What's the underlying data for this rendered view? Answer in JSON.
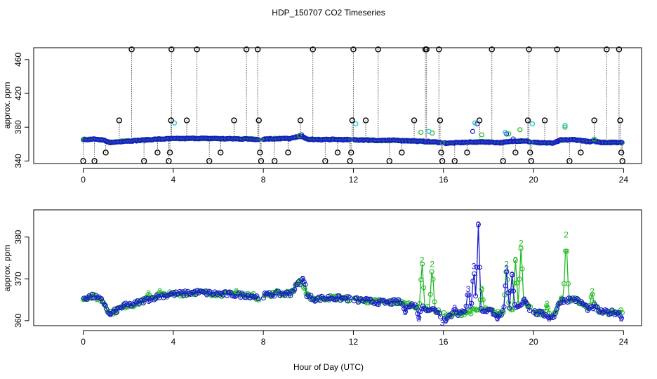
{
  "chart_data": {
    "title": "HDP_150707  CO2 Timeseries",
    "xlabel": "Hour of Day (UTC)",
    "xlim": [
      -2.2,
      24.8
    ],
    "xticks": [
      0,
      4,
      8,
      12,
      16,
      20,
      24
    ],
    "colors": {
      "flag": "#000000",
      "flag_line": "#000000",
      "cyan": "#2ec8d0",
      "green": "#22bb22",
      "blue": "#1a1acc"
    },
    "panels": [
      {
        "type": "scatter",
        "ylabel": "approx. ppm",
        "ylim": [
          337,
          474
        ],
        "yticks": [
          340,
          380,
          420,
          460
        ],
        "flag_values": [
          [
            0.0,
            340
          ],
          [
            0.5,
            340
          ],
          [
            1.0,
            350
          ],
          [
            1.6,
            388
          ],
          [
            2.15,
            472
          ],
          [
            2.7,
            340
          ],
          [
            3.3,
            350
          ],
          [
            3.8,
            340
          ],
          [
            3.85,
            350
          ],
          [
            3.9,
            388
          ],
          [
            3.92,
            472
          ],
          [
            4.6,
            388
          ],
          [
            5.05,
            472
          ],
          [
            5.6,
            340
          ],
          [
            6.1,
            350
          ],
          [
            6.7,
            388
          ],
          [
            7.25,
            472
          ],
          [
            7.75,
            472
          ],
          [
            7.8,
            388
          ],
          [
            7.85,
            350
          ],
          [
            7.9,
            340
          ],
          [
            8.5,
            340
          ],
          [
            9.1,
            350
          ],
          [
            9.65,
            388
          ],
          [
            10.2,
            472
          ],
          [
            10.75,
            340
          ],
          [
            11.3,
            350
          ],
          [
            11.85,
            340
          ],
          [
            11.9,
            350
          ],
          [
            11.95,
            388
          ],
          [
            12.0,
            472
          ],
          [
            12.55,
            388
          ],
          [
            13.1,
            472
          ],
          [
            13.6,
            340
          ],
          [
            14.15,
            350
          ],
          [
            14.7,
            388
          ],
          [
            15.2,
            472
          ],
          [
            15.25,
            472
          ],
          [
            15.8,
            472
          ],
          [
            15.85,
            388
          ],
          [
            15.9,
            350
          ],
          [
            15.95,
            340
          ],
          [
            16.5,
            340
          ],
          [
            17.05,
            350
          ],
          [
            17.6,
            388
          ],
          [
            18.15,
            472
          ],
          [
            18.65,
            340
          ],
          [
            19.2,
            350
          ],
          [
            19.75,
            388
          ],
          [
            19.8,
            472
          ],
          [
            19.85,
            350
          ],
          [
            19.9,
            340
          ],
          [
            20.5,
            388
          ],
          [
            21.05,
            472
          ],
          [
            21.6,
            340
          ],
          [
            22.1,
            350
          ],
          [
            22.7,
            388
          ],
          [
            23.25,
            472
          ],
          [
            23.8,
            472
          ],
          [
            23.85,
            388
          ],
          [
            23.9,
            350
          ],
          [
            23.95,
            340
          ]
        ],
        "cyan_values": [
          [
            4.05,
            385
          ],
          [
            12.1,
            384
          ],
          [
            15.35,
            375
          ],
          [
            17.4,
            385
          ],
          [
            19.95,
            384
          ],
          [
            21.4,
            382
          ],
          [
            18.75,
            374
          ]
        ],
        "green_peaks": [
          [
            15.0,
            374
          ],
          [
            15.5,
            373
          ],
          [
            17.7,
            371
          ],
          [
            19.4,
            377
          ],
          [
            21.4,
            380
          ],
          [
            22.7,
            366
          ],
          [
            18.9,
            372
          ],
          [
            9.6,
            370
          ]
        ],
        "blue_peaks": [
          [
            17.5,
            384
          ],
          [
            17.3,
            375
          ],
          [
            18.8,
            372
          ],
          [
            9.7,
            371
          ],
          [
            19.1,
            366
          ]
        ]
      },
      {
        "type": "line",
        "ylabel": "approx. ppm",
        "ylim": [
          358.8,
          386.5
        ],
        "yticks": [
          360,
          370,
          380
        ],
        "series": [
          {
            "name": "2",
            "color": "#22bb22"
          },
          {
            "name": "3",
            "color": "#1a1acc"
          }
        ],
        "base_curve": [
          [
            0.0,
            365.5
          ],
          [
            0.5,
            365.8
          ],
          [
            0.9,
            364.5
          ],
          [
            1.15,
            362.0
          ],
          [
            1.4,
            362.2
          ],
          [
            1.8,
            363.5
          ],
          [
            2.3,
            364.0
          ],
          [
            2.8,
            365.0
          ],
          [
            3.3,
            365.8
          ],
          [
            3.8,
            366.3
          ],
          [
            4.5,
            366.5
          ],
          [
            5.0,
            366.8
          ],
          [
            5.5,
            366.6
          ],
          [
            6.5,
            366.3
          ],
          [
            7.5,
            366.0
          ],
          [
            7.8,
            365.5
          ],
          [
            8.0,
            366.0
          ],
          [
            8.5,
            366.4
          ],
          [
            9.2,
            366.5
          ],
          [
            9.5,
            368.5
          ],
          [
            9.7,
            369.5
          ],
          [
            9.9,
            366.0
          ],
          [
            10.3,
            365.2
          ],
          [
            11.0,
            365.5
          ],
          [
            11.8,
            365.2
          ],
          [
            12.0,
            365.0
          ],
          [
            12.5,
            364.8
          ],
          [
            13.0,
            364.5
          ],
          [
            13.5,
            364.3
          ],
          [
            14.0,
            364.5
          ],
          [
            14.2,
            364.0
          ],
          [
            14.6,
            363.8
          ],
          [
            15.0,
            363.2
          ],
          [
            15.5,
            362.7
          ],
          [
            15.85,
            362.0
          ],
          [
            16.1,
            361.0
          ],
          [
            16.5,
            361.5
          ],
          [
            17.0,
            362.0
          ],
          [
            17.5,
            362.5
          ],
          [
            18.0,
            362.5
          ],
          [
            18.5,
            361.5
          ],
          [
            18.8,
            362.5
          ],
          [
            19.2,
            363.5
          ],
          [
            19.6,
            364.0
          ],
          [
            20.0,
            362.0
          ],
          [
            20.5,
            361.5
          ],
          [
            20.9,
            361.0
          ],
          [
            21.2,
            364.8
          ],
          [
            21.8,
            365.2
          ],
          [
            22.2,
            364.0
          ],
          [
            22.5,
            362.5
          ],
          [
            22.7,
            363.5
          ],
          [
            23.0,
            362.0
          ],
          [
            23.5,
            362.0
          ],
          [
            23.9,
            362.0
          ]
        ],
        "gaps": [
          [
            7.82,
            7.98
          ],
          [
            11.88,
            12.02
          ],
          [
            15.88,
            16.0
          ],
          [
            19.88,
            20.0
          ]
        ],
        "green_spikes": [
          [
            15.05,
            374.5
          ],
          [
            15.5,
            373.5
          ],
          [
            17.7,
            367.5
          ],
          [
            19.2,
            374.5
          ],
          [
            19.45,
            378.5
          ],
          [
            20.6,
            364.0
          ],
          [
            21.45,
            380.5
          ],
          [
            22.6,
            367.0
          ],
          [
            18.8,
            373.5
          ],
          [
            9.6,
            369.5
          ],
          [
            3.4,
            367.0
          ],
          [
            2.9,
            366.5
          ],
          [
            6.8,
            367.0
          ],
          [
            8.6,
            367.0
          ]
        ],
        "blue_spikes": [
          [
            17.55,
            383.0
          ],
          [
            17.35,
            373.0
          ],
          [
            17.1,
            367.5
          ],
          [
            18.8,
            372.5
          ],
          [
            19.05,
            371.0
          ],
          [
            19.6,
            365.0
          ],
          [
            16.5,
            363.0
          ],
          [
            15.95,
            359.5
          ],
          [
            14.9,
            360.5
          ],
          [
            16.1,
            360.0
          ],
          [
            9.75,
            370.0
          ],
          [
            1.2,
            361.5
          ],
          [
            14.3,
            362.0
          ],
          [
            18.4,
            360.5
          ],
          [
            20.7,
            360.5
          ],
          [
            23.9,
            360.5
          ]
        ]
      }
    ]
  }
}
